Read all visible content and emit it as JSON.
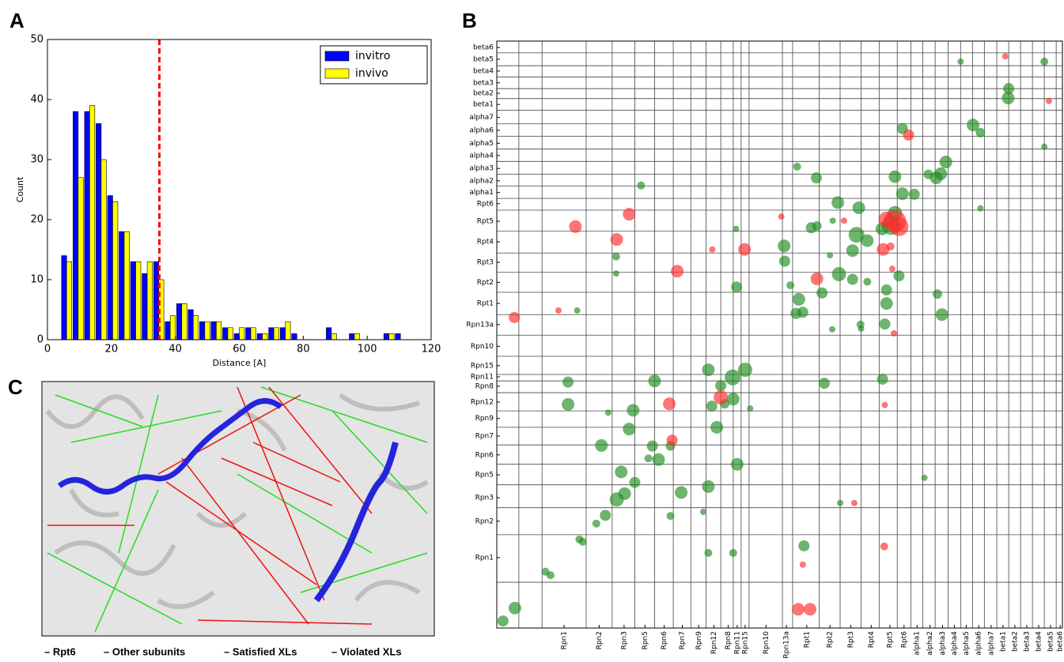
{
  "chart_data": [
    {
      "label": "A",
      "type": "bar",
      "xlabel": "Distance [A]",
      "ylabel": "Count",
      "x": [
        6,
        9.6,
        13.2,
        16.8,
        20.4,
        24,
        27.6,
        31.2,
        34.8,
        38.4,
        42,
        45.6,
        49.2,
        52.8,
        56.4,
        60,
        63.6,
        67.2,
        70.8,
        74.4,
        78,
        81.6,
        85.2,
        88.8,
        92.4,
        96,
        99.6,
        103.2,
        106.8,
        110.4
      ],
      "series": [
        {
          "name": "invitro",
          "color": "#0000ff",
          "values": [
            14,
            38,
            38,
            36,
            24,
            18,
            13,
            11,
            13,
            3,
            6,
            5,
            3,
            3,
            2,
            1,
            2,
            1,
            2,
            2,
            1,
            0,
            0,
            2,
            0,
            1,
            0,
            0,
            1,
            1
          ]
        },
        {
          "name": "invivo",
          "color": "#ffff00",
          "values": [
            13,
            27,
            39,
            30,
            23,
            18,
            13,
            13,
            10,
            4,
            6,
            4,
            3,
            3,
            2,
            2,
            2,
            1,
            2,
            3,
            0,
            0,
            0,
            1,
            0,
            1,
            0,
            0,
            1,
            0
          ]
        }
      ],
      "xlim": [
        0,
        120
      ],
      "xticks": [
        0,
        20,
        40,
        60,
        80,
        100,
        120
      ],
      "ylim": [
        0,
        50
      ],
      "yticks": [
        0,
        10,
        20,
        30,
        40,
        50
      ],
      "vline": {
        "x": 35,
        "color": "#ff0000"
      },
      "legend": "upper right"
    },
    {
      "label": "B",
      "type": "scatter",
      "xlim": [
        0,
        100
      ],
      "ylim": [
        0,
        100
      ],
      "xticks": [
        {
          "value": 11.9,
          "label": "Rpn1"
        },
        {
          "value": 18.1,
          "label": "Rpn2"
        },
        {
          "value": 22.5,
          "label": "Rpn3"
        },
        {
          "value": 26.2,
          "label": "Rpn5"
        },
        {
          "value": 29.6,
          "label": "Rpn6"
        },
        {
          "value": 32.8,
          "label": "Rpn7"
        },
        {
          "value": 35.7,
          "label": "Rpn9"
        },
        {
          "value": 38.4,
          "label": "Rpn12"
        },
        {
          "value": 40.9,
          "label": "Rpn8"
        },
        {
          "value": 42.5,
          "label": "Rpn11"
        },
        {
          "value": 43.9,
          "label": "Rpn15"
        },
        {
          "value": 47.6,
          "label": "Rpn10"
        },
        {
          "value": 51.2,
          "label": "Rpn13a"
        },
        {
          "value": 54.8,
          "label": "Rpt1"
        },
        {
          "value": 58.9,
          "label": "Rpt2"
        },
        {
          "value": 62.6,
          "label": "Rpt3"
        },
        {
          "value": 66.2,
          "label": "Rpt4"
        },
        {
          "value": 69.5,
          "label": "Rpt5"
        },
        {
          "value": 72.0,
          "label": "Rpt6"
        },
        {
          "value": 74.3,
          "label": "alpha1"
        },
        {
          "value": 76.6,
          "label": "alpha2"
        },
        {
          "value": 78.8,
          "label": "alpha3"
        },
        {
          "value": 80.9,
          "label": "alpha4"
        },
        {
          "value": 83.0,
          "label": "alpha5"
        },
        {
          "value": 85.2,
          "label": "alpha6"
        },
        {
          "value": 87.4,
          "label": "alpha7"
        },
        {
          "value": 89.5,
          "label": "beta1"
        },
        {
          "value": 91.6,
          "label": "beta2"
        },
        {
          "value": 93.7,
          "label": "beta3"
        },
        {
          "value": 95.8,
          "label": "beta4"
        },
        {
          "value": 97.9,
          "label": "beta5"
        },
        {
          "value": 99.6,
          "label": "beta6"
        }
      ],
      "yticks": [
        {
          "value": 98.9,
          "label": "beta6"
        },
        {
          "value": 96.9,
          "label": "beta5"
        },
        {
          "value": 94.9,
          "label": "beta4"
        },
        {
          "value": 92.9,
          "label": "beta3"
        },
        {
          "value": 91.1,
          "label": "beta2"
        },
        {
          "value": 89.2,
          "label": "beta1"
        },
        {
          "value": 87.0,
          "label": "alpha7"
        },
        {
          "value": 84.8,
          "label": "alpha6"
        },
        {
          "value": 82.6,
          "label": "alpha5"
        },
        {
          "value": 80.5,
          "label": "alpha4"
        },
        {
          "value": 78.3,
          "label": "alpha3"
        },
        {
          "value": 76.2,
          "label": "alpha2"
        },
        {
          "value": 74.2,
          "label": "alpha1"
        },
        {
          "value": 72.3,
          "label": "Rpt6"
        },
        {
          "value": 69.3,
          "label": "Rpt5"
        },
        {
          "value": 65.8,
          "label": "Rpt4"
        },
        {
          "value": 62.3,
          "label": "Rpt3"
        },
        {
          "value": 58.9,
          "label": "Rpt2"
        },
        {
          "value": 55.3,
          "label": "Rpt1"
        },
        {
          "value": 51.7,
          "label": "Rpn13a"
        },
        {
          "value": 48.0,
          "label": "Rpn10"
        },
        {
          "value": 44.7,
          "label": "Rpn15"
        },
        {
          "value": 42.8,
          "label": "Rpn11"
        },
        {
          "value": 41.2,
          "label": "Rpn8"
        },
        {
          "value": 38.5,
          "label": "Rpn12"
        },
        {
          "value": 35.7,
          "label": "Rpn9"
        },
        {
          "value": 32.7,
          "label": "Rpn7"
        },
        {
          "value": 29.5,
          "label": "Rpn6"
        },
        {
          "value": 26.1,
          "label": "Rpn5"
        },
        {
          "value": 22.2,
          "label": "Rpn3"
        },
        {
          "value": 18.2,
          "label": "Rpn2"
        },
        {
          "value": 12.0,
          "label": "Rpn1"
        }
      ],
      "xgrid": [
        3.9,
        8.0,
        15.8,
        20.4,
        24.4,
        27.9,
        31.2,
        34.3,
        37.0,
        39.6,
        41.8,
        43.2,
        44.6,
        50.5,
        52.3,
        57.0,
        60.7,
        64.4,
        67.6,
        70.8,
        73.2,
        75.3,
        77.5,
        79.8,
        82.0,
        84.1,
        86.2,
        88.4,
        90.5,
        92.6,
        94.7,
        96.8,
        98.9
      ],
      "ygrid": [
        98.0,
        95.8,
        93.9,
        91.9,
        90.2,
        88.2,
        85.9,
        83.8,
        81.6,
        79.5,
        77.3,
        75.3,
        73.2,
        71.2,
        67.6,
        63.9,
        60.6,
        57.2,
        53.4,
        49.9,
        46.3,
        43.2,
        42.1,
        40.1,
        37.0,
        34.2,
        31.2,
        27.9,
        24.4,
        20.5,
        15.9,
        7.8
      ],
      "series": [
        {
          "color": "#1e8c1e",
          "x": [
            1.1,
            3.2,
            8.6,
            9.5,
            14.6,
            15.2,
            17.6,
            19.2,
            21.2,
            22.6,
            24.4,
            22.0,
            18.5,
            23.4,
            24.1,
            12.6,
            12.6,
            19.7,
            27.5,
            28.6,
            30.7,
            27.9,
            32.6,
            30.7,
            36.5,
            37.4,
            37.4,
            39.6,
            41.7,
            43.9,
            41.8,
            38.0,
            38.9,
            42.5,
            42.4,
            37.4,
            41.8,
            54.3,
            52.9,
            54.1,
            53.4,
            57.5,
            60.5,
            62.9,
            65.5,
            50.9,
            50.8,
            55.6,
            56.6,
            56.5,
            53.1,
            60.3,
            64.0,
            62.9,
            65.5,
            63.6,
            68.1,
            69.7,
            70.4,
            71.7,
            73.8,
            77.7,
            79.4,
            78.5,
            76.3,
            70.4,
            71.7,
            84.2,
            85.5,
            82.0,
            90.4,
            90.5,
            96.8,
            96.8,
            85.5,
            75.6,
            60.7,
            64.3,
            68.6,
            68.9,
            68.9,
            71.1,
            77.9,
            78.7,
            68.2,
            57.9,
            59.3,
            64.4,
            51.9,
            58.9,
            59.4,
            25.5,
            42.3,
            14.2,
            21.1,
            21.1,
            40.3,
            44.8,
            26.8
          ],
          "y": [
            1.2,
            3.4,
            9.6,
            9.0,
            15.1,
            14.7,
            17.8,
            19.2,
            21.9,
            22.9,
            24.8,
            26.6,
            31.1,
            33.9,
            37.1,
            38.1,
            41.9,
            36.7,
            31.0,
            28.7,
            31.0,
            42.1,
            23.1,
            19.1,
            19.8,
            24.1,
            44.0,
            41.3,
            42.7,
            44.0,
            39.0,
            37.8,
            34.2,
            27.9,
            58.1,
            12.8,
            12.8,
            14.0,
            53.6,
            53.8,
            56.0,
            57.1,
            60.3,
            59.4,
            59.0,
            62.5,
            65.1,
            68.2,
            68.5,
            76.7,
            78.6,
            72.5,
            71.6,
            64.3,
            66.0,
            67.0,
            68.0,
            68.6,
            70.7,
            74.0,
            73.9,
            76.7,
            79.4,
            77.4,
            77.3,
            76.9,
            85.1,
            85.7,
            84.4,
            96.5,
            90.3,
            91.9,
            96.5,
            82.0,
            71.5,
            25.6,
            21.3,
            51.7,
            51.8,
            55.3,
            57.6,
            60.0,
            56.9,
            53.4,
            42.4,
            41.7,
            50.9,
            51.0,
            58.4,
            63.5,
            69.4,
            75.4,
            68.0,
            54.1,
            63.3,
            60.4,
            38.2,
            37.4,
            28.9
          ],
          "size": [
            7,
            8,
            5,
            5,
            5,
            5,
            5,
            7,
            9,
            8,
            7,
            8,
            8,
            8,
            8,
            8,
            7,
            4,
            7,
            8,
            6,
            8,
            8,
            5,
            4,
            8,
            8,
            7,
            10,
            9,
            8,
            7,
            8,
            8,
            7,
            5,
            5,
            7,
            7,
            7,
            8,
            7,
            9,
            7,
            5,
            7,
            8,
            7,
            6,
            7,
            5,
            8,
            8,
            8,
            8,
            10,
            8,
            12,
            9,
            8,
            7,
            8,
            8,
            8,
            6,
            8,
            7,
            8,
            6,
            4,
            8,
            7,
            5,
            4,
            4,
            4,
            4,
            5,
            7,
            8,
            7,
            7,
            6,
            8,
            7,
            7,
            4,
            4,
            5,
            4,
            4,
            5,
            4,
            4,
            5,
            4,
            6,
            4,
            5
          ]
        },
        {
          "color": "#ff2a2a",
          "x": [
            3.1,
            10.9,
            13.9,
            21.2,
            23.4,
            31.9,
            30.5,
            31.0,
            38.1,
            43.8,
            39.6,
            50.3,
            56.6,
            61.4,
            68.3,
            68.9,
            70.4,
            71.1,
            69.6,
            69.9,
            70.2,
            68.6,
            68.5,
            54.1,
            53.3,
            55.4,
            72.8,
            89.9,
            97.6,
            63.2
          ],
          "y": [
            52.9,
            54.1,
            68.4,
            66.2,
            70.5,
            60.8,
            38.2,
            32.0,
            64.5,
            64.5,
            39.3,
            70.1,
            59.5,
            69.4,
            64.5,
            69.6,
            69.3,
            68.4,
            65.0,
            61.2,
            50.2,
            38.0,
            13.9,
            10.8,
            3.2,
            3.2,
            84.0,
            97.4,
            89.8,
            21.3
          ],
          "size": [
            7,
            4,
            8,
            8,
            8,
            8,
            8,
            7,
            4,
            8,
            9,
            4,
            8,
            4,
            8,
            10,
            14,
            12,
            5,
            4,
            4,
            4,
            5,
            4,
            8,
            8,
            7,
            4,
            4,
            4
          ]
        }
      ]
    }
  ],
  "panel_c": {
    "label": "C",
    "legend": [
      {
        "text": "– Rpt6",
        "color": "#1a1aff"
      },
      {
        "text": "– Other subunits",
        "color": "#a8a8a8"
      },
      {
        "text": "– Satisfied XLs",
        "color": "#22dd22"
      },
      {
        "text": "– Violated XLs",
        "color": "#ee1111"
      }
    ]
  }
}
